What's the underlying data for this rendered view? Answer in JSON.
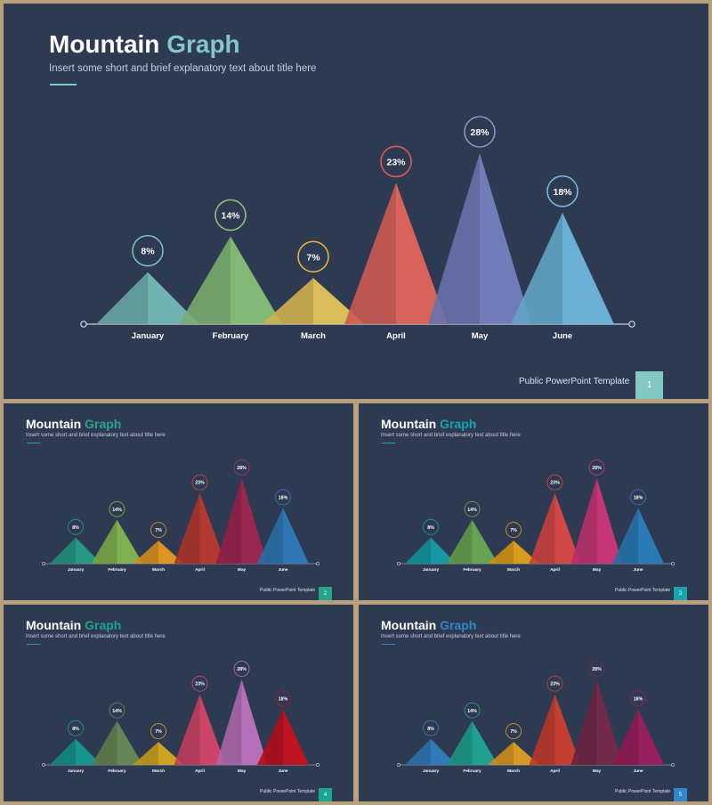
{
  "slides": [
    {
      "title_main": "Mountain",
      "title_accent": "Graph",
      "subtitle": "Insert some short and brief explanatory text about title here",
      "footer": "Public PowerPoint Template",
      "page_number": "1",
      "accent_color": "#83c9c3",
      "colors": [
        "#79c4bd",
        "#8dc97d",
        "#f1cf5a",
        "#f0695d",
        "#7b86c8",
        "#72c0e6"
      ],
      "ring_colors": [
        "#79c4bd",
        "#8dc97d",
        "#e7bd46",
        "#ea5c53",
        "#8e98cc",
        "#72c0e6"
      ],
      "chart_data": {
        "type": "area",
        "categories": [
          "January",
          "February",
          "March",
          "April",
          "May",
          "June"
        ],
        "values": [
          8,
          14,
          7,
          23,
          28,
          18
        ],
        "data_labels": [
          "8%",
          "14%",
          "7%",
          "23%",
          "28%",
          "18%"
        ],
        "ylim": [
          0,
          28
        ]
      }
    },
    {
      "title_main": "Mountain",
      "title_accent": "Graph",
      "subtitle": "Insert some short and brief explanatory text about title here",
      "footer": "Public PowerPoint Template",
      "page_number": "2",
      "accent_color": "#27a58a",
      "colors": [
        "#26a58c",
        "#8cc04f",
        "#f5a21f",
        "#c53a2d",
        "#a82551",
        "#2f80c2"
      ],
      "ring_colors": [
        "#26a58c",
        "#8cc04f",
        "#f5a21f",
        "#d54a3a",
        "#b63360",
        "#2f80c2"
      ],
      "chart_data": {
        "type": "area",
        "categories": [
          "January",
          "February",
          "March",
          "April",
          "May",
          "June"
        ],
        "values": [
          8,
          14,
          7,
          23,
          28,
          18
        ],
        "data_labels": [
          "8%",
          "14%",
          "7%",
          "23%",
          "28%",
          "18%"
        ],
        "ylim": [
          0,
          28
        ]
      }
    },
    {
      "title_main": "Mountain",
      "title_accent": "Graph",
      "subtitle": "Insert some short and brief explanatory text about title here",
      "footer": "Public PowerPoint Template",
      "page_number": "3",
      "accent_color": "#17a5b0",
      "colors": [
        "#14a6ae",
        "#71b153",
        "#f0aa10",
        "#e84a44",
        "#d9367b",
        "#2a83c4"
      ],
      "ring_colors": [
        "#14a6ae",
        "#71b153",
        "#f0aa10",
        "#e84a44",
        "#d9367b",
        "#2a83c4"
      ],
      "chart_data": {
        "type": "area",
        "categories": [
          "January",
          "February",
          "March",
          "April",
          "May",
          "June"
        ],
        "values": [
          8,
          14,
          7,
          23,
          28,
          18
        ],
        "data_labels": [
          "8%",
          "14%",
          "7%",
          "23%",
          "28%",
          "18%"
        ],
        "ylim": [
          0,
          28
        ]
      }
    },
    {
      "title_main": "Mountain",
      "title_accent": "Graph",
      "subtitle": "Insert some short and brief explanatory text about title here",
      "footer": "Public PowerPoint Template",
      "page_number": "4",
      "accent_color": "#1aa58f",
      "colors": [
        "#15a195",
        "#6d8f56",
        "#e3b21a",
        "#e2476a",
        "#c878c6",
        "#d20f1c"
      ],
      "ring_colors": [
        "#15a195",
        "#6d8f56",
        "#e3b21a",
        "#e2476a",
        "#c878c6",
        "#d20f1c"
      ],
      "chart_data": {
        "type": "area",
        "categories": [
          "January",
          "February",
          "March",
          "April",
          "May",
          "June"
        ],
        "values": [
          8,
          14,
          7,
          23,
          28,
          18
        ],
        "data_labels": [
          "8%",
          "14%",
          "7%",
          "23%",
          "28%",
          "18%"
        ],
        "ylim": [
          0,
          28
        ]
      }
    },
    {
      "title_main": "Mountain",
      "title_accent": "Graph",
      "subtitle": "Insert some short and brief explanatory text about title here",
      "footer": "Public PowerPoint Template",
      "page_number": "5",
      "accent_color": "#2f86c8",
      "colors": [
        "#3283c6",
        "#1fae97",
        "#f0a51e",
        "#d9402e",
        "#7b2848",
        "#a51d5c"
      ],
      "ring_colors": [
        "#3283c6",
        "#1fae97",
        "#f0a51e",
        "#d9402e",
        "#7b2848",
        "#a51d5c"
      ],
      "chart_data": {
        "type": "area",
        "categories": [
          "January",
          "February",
          "March",
          "April",
          "May",
          "June"
        ],
        "values": [
          8,
          14,
          7,
          23,
          28,
          18
        ],
        "data_labels": [
          "8%",
          "14%",
          "7%",
          "23%",
          "28%",
          "18%"
        ],
        "ylim": [
          0,
          28
        ]
      }
    }
  ]
}
